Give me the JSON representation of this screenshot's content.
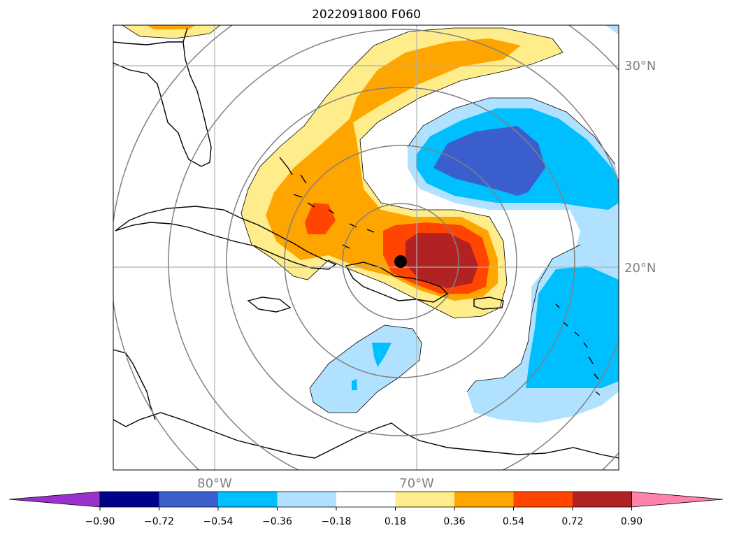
{
  "title": "2022091800 F060",
  "map": {
    "lat_labels": [
      "30°N",
      "20°N"
    ],
    "lon_labels": [
      "80°W",
      "70°W"
    ],
    "grid_color": "#b0b0b0",
    "range_ring_color": "#808080",
    "center_marker": "black-dot",
    "contour_line_color": "#000000"
  },
  "colorbar": {
    "extend": "both",
    "ticks": [
      "−0.90",
      "−0.72",
      "−0.54",
      "−0.36",
      "−0.18",
      "0.18",
      "0.36",
      "0.54",
      "0.72",
      "0.90"
    ],
    "bins": [
      {
        "range": "< -0.90",
        "color": "#9932CC"
      },
      {
        "range": "-0.90 to -0.72",
        "color": "#00008B"
      },
      {
        "range": "-0.72 to -0.54",
        "color": "#3A5FCD"
      },
      {
        "range": "-0.54 to -0.36",
        "color": "#00BFFF"
      },
      {
        "range": "-0.36 to -0.18",
        "color": "#B0E2FF"
      },
      {
        "range": "-0.18 to 0.18",
        "color": "#FFFFFF"
      },
      {
        "range": "0.18 to 0.36",
        "color": "#FFEC8B"
      },
      {
        "range": "0.36 to 0.54",
        "color": "#FFA500"
      },
      {
        "range": "0.54 to 0.72",
        "color": "#FF4500"
      },
      {
        "range": "0.72 to 0.90",
        "color": "#B22222"
      },
      {
        "range": "> 0.90",
        "color": "#FF82AB"
      }
    ]
  }
}
